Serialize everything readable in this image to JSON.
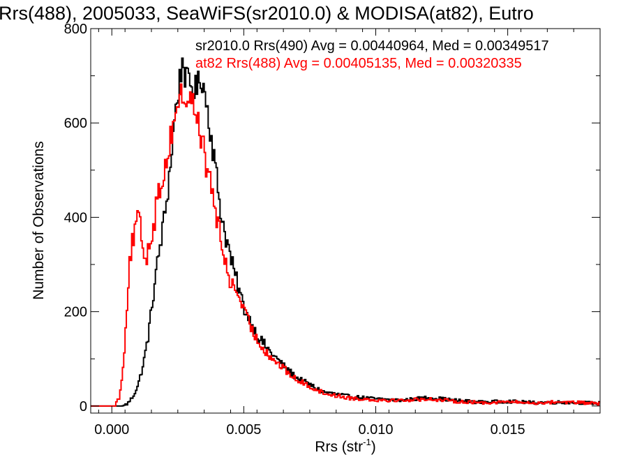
{
  "chart_data": {
    "type": "line",
    "title": "Rrs(488), 2005033, SeaWiFS(sr2010.0) & MODISA(at82), Eutro",
    "xlabel": "Rrs (str",
    "xlabel_sup": "-1",
    "xlabel_close": ")",
    "ylabel": "Number of Observations",
    "xlim": [
      -0.0008,
      0.0185
    ],
    "ylim": [
      -15,
      800
    ],
    "x_ticks": [
      0.0,
      0.005,
      0.01,
      0.015
    ],
    "x_tick_labels": [
      "0.000",
      "0.005",
      "0.010",
      "0.015"
    ],
    "y_ticks": [
      0,
      200,
      400,
      600,
      800
    ],
    "y_tick_labels": [
      "0",
      "200",
      "400",
      "600",
      "800"
    ],
    "grid": false,
    "legend_position": "top-right",
    "series": [
      {
        "name": "sr2010.0 Rrs(490) Avg = 0.00440964, Med = 0.00349517",
        "color": "#000000",
        "points": [
          [
            -0.0008,
            0
          ],
          [
            0.0004,
            0
          ],
          [
            0.0006,
            5
          ],
          [
            0.0008,
            20
          ],
          [
            0.001,
            45
          ],
          [
            0.0012,
            90
          ],
          [
            0.0014,
            155
          ],
          [
            0.0016,
            250
          ],
          [
            0.0018,
            330
          ],
          [
            0.002,
            400
          ],
          [
            0.0022,
            500
          ],
          [
            0.0024,
            620
          ],
          [
            0.0026,
            700
          ],
          [
            0.0027,
            740
          ],
          [
            0.0028,
            690
          ],
          [
            0.003,
            680
          ],
          [
            0.0032,
            670
          ],
          [
            0.0034,
            700
          ],
          [
            0.0036,
            640
          ],
          [
            0.0038,
            560
          ],
          [
            0.004,
            470
          ],
          [
            0.0042,
            390
          ],
          [
            0.0044,
            340
          ],
          [
            0.0046,
            290
          ],
          [
            0.0048,
            250
          ],
          [
            0.005,
            210
          ],
          [
            0.0055,
            150
          ],
          [
            0.006,
            115
          ],
          [
            0.0065,
            85
          ],
          [
            0.007,
            60
          ],
          [
            0.0075,
            45
          ],
          [
            0.008,
            30
          ],
          [
            0.0085,
            25
          ],
          [
            0.009,
            20
          ],
          [
            0.01,
            15
          ],
          [
            0.011,
            12
          ],
          [
            0.012,
            18
          ],
          [
            0.013,
            12
          ],
          [
            0.014,
            8
          ],
          [
            0.015,
            10
          ],
          [
            0.016,
            7
          ],
          [
            0.017,
            8
          ],
          [
            0.0185,
            6
          ]
        ]
      },
      {
        "name": "at82 Rrs(488) Avg = 0.00405135, Med = 0.00320335",
        "color": "#ff0000",
        "points": [
          [
            -0.0008,
            0
          ],
          [
            0.0001,
            0
          ],
          [
            0.0003,
            20
          ],
          [
            0.0004,
            70
          ],
          [
            0.0005,
            140
          ],
          [
            0.0006,
            240
          ],
          [
            0.0007,
            320
          ],
          [
            0.0008,
            350
          ],
          [
            0.001,
            400
          ],
          [
            0.0011,
            370
          ],
          [
            0.0012,
            330
          ],
          [
            0.0013,
            310
          ],
          [
            0.0014,
            340
          ],
          [
            0.0016,
            390
          ],
          [
            0.0018,
            460
          ],
          [
            0.002,
            500
          ],
          [
            0.0022,
            560
          ],
          [
            0.0024,
            620
          ],
          [
            0.0026,
            660
          ],
          [
            0.0028,
            650
          ],
          [
            0.003,
            650
          ],
          [
            0.0032,
            620
          ],
          [
            0.0034,
            570
          ],
          [
            0.0036,
            500
          ],
          [
            0.0038,
            460
          ],
          [
            0.004,
            390
          ],
          [
            0.0042,
            330
          ],
          [
            0.0044,
            280
          ],
          [
            0.0046,
            250
          ],
          [
            0.0048,
            240
          ],
          [
            0.005,
            200
          ],
          [
            0.0055,
            140
          ],
          [
            0.006,
            105
          ],
          [
            0.0065,
            80
          ],
          [
            0.007,
            55
          ],
          [
            0.0075,
            42
          ],
          [
            0.008,
            28
          ],
          [
            0.0085,
            22
          ],
          [
            0.009,
            17
          ],
          [
            0.01,
            13
          ],
          [
            0.011,
            12
          ],
          [
            0.012,
            15
          ],
          [
            0.013,
            10
          ],
          [
            0.014,
            7
          ],
          [
            0.015,
            9
          ],
          [
            0.016,
            6
          ],
          [
            0.017,
            9
          ],
          [
            0.0185,
            5
          ]
        ]
      }
    ]
  }
}
